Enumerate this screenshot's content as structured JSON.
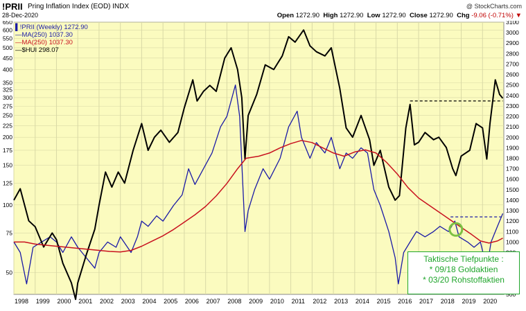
{
  "header": {
    "symbol": "!PRII",
    "name": "Pring Inflation Index (EOD)  INDX",
    "date": "28-Dec-2020",
    "brand": "@ StockCharts.com",
    "open_label": "Open",
    "open_value": "1272.90",
    "high_label": "High",
    "high_value": "1272.90",
    "low_label": "Low",
    "low_value": "1272.90",
    "close_label": "Close",
    "close_value": "1272.90",
    "chg_label": "Chg",
    "chg_value": "-9.06 (-0.71%)",
    "chg_arrow": "▼"
  },
  "legend": {
    "items": [
      {
        "text": "▌!PRII (Weekly) 1272.90",
        "color": "#1a1aa6"
      },
      {
        "text": "—MA(250) 1037.30",
        "color": "#1a1aa6"
      },
      {
        "text": "—MA(250) 1037.30",
        "color": "#c8101e"
      },
      {
        "text": "—$HUI 298.07",
        "color": "#000000"
      }
    ]
  },
  "annotation": {
    "title": "Taktische Tiefpunkte :",
    "line1": "* 09/18 Goldaktien",
    "line2": "* 03/20 Rohstoffaktien"
  },
  "colors": {
    "plot_bg": "#fbfbbf",
    "grid": "#d9d9a6",
    "prii": "#1a1aa6",
    "ma": "#c8101e",
    "hui": "#000000",
    "circle": "#7cc043",
    "annotation": "#1fa52b"
  },
  "chart_data": {
    "type": "line",
    "title": "",
    "x_ticks": [
      "1998",
      "1999",
      "2000",
      "2001",
      "2002",
      "2003",
      "2004",
      "2005",
      "2006",
      "2007",
      "2008",
      "2009",
      "2010",
      "2011",
      "2012",
      "2013",
      "2014",
      "2015",
      "2016",
      "2017",
      "2018",
      "2019",
      "2020"
    ],
    "left_axis_ticks": [
      "650",
      "600",
      "550",
      "500",
      "450",
      "400",
      "350",
      "325",
      "300",
      "275",
      "250",
      "225",
      "200",
      "175",
      "150",
      "125",
      "100",
      "75",
      "50"
    ],
    "right_axis_ticks": [
      "3100",
      "3000",
      "2900",
      "2800",
      "2700",
      "2600",
      "2500",
      "2400",
      "2300",
      "2200",
      "2100",
      "2000",
      "1900",
      "1800",
      "1700",
      "1600",
      "1500",
      "1400",
      "1300",
      "1200",
      "1100",
      "1000",
      "900",
      "800",
      "700",
      "600",
      "500"
    ],
    "left_scale": "log",
    "left_range": [
      40,
      650
    ],
    "right_range": [
      500,
      3100
    ],
    "x_range": [
      1998.0,
      2021.0
    ],
    "grid": true,
    "series": [
      {
        "name": "$HUI 298.07",
        "axis": "left",
        "points": [
          [
            1998.0,
            105
          ],
          [
            1998.3,
            118
          ],
          [
            1998.7,
            85
          ],
          [
            1999.0,
            80
          ],
          [
            1999.4,
            65
          ],
          [
            1999.8,
            75
          ],
          [
            2000.0,
            70
          ],
          [
            2000.3,
            55
          ],
          [
            2000.7,
            45
          ],
          [
            2000.9,
            38
          ],
          [
            2001.0,
            45
          ],
          [
            2001.4,
            60
          ],
          [
            2001.8,
            78
          ],
          [
            2002.0,
            100
          ],
          [
            2002.3,
            140
          ],
          [
            2002.6,
            120
          ],
          [
            2002.9,
            140
          ],
          [
            2003.2,
            125
          ],
          [
            2003.6,
            175
          ],
          [
            2004.0,
            230
          ],
          [
            2004.3,
            175
          ],
          [
            2004.6,
            200
          ],
          [
            2004.9,
            215
          ],
          [
            2005.3,
            190
          ],
          [
            2005.7,
            210
          ],
          [
            2006.0,
            270
          ],
          [
            2006.4,
            360
          ],
          [
            2006.6,
            290
          ],
          [
            2006.9,
            320
          ],
          [
            2007.2,
            340
          ],
          [
            2007.5,
            320
          ],
          [
            2007.9,
            450
          ],
          [
            2008.2,
            500
          ],
          [
            2008.5,
            400
          ],
          [
            2008.7,
            300
          ],
          [
            2008.85,
            160
          ],
          [
            2009.0,
            250
          ],
          [
            2009.4,
            310
          ],
          [
            2009.8,
            420
          ],
          [
            2010.2,
            400
          ],
          [
            2010.6,
            460
          ],
          [
            2010.9,
            560
          ],
          [
            2011.2,
            530
          ],
          [
            2011.6,
            600
          ],
          [
            2011.9,
            510
          ],
          [
            2012.2,
            480
          ],
          [
            2012.6,
            460
          ],
          [
            2012.9,
            500
          ],
          [
            2013.3,
            330
          ],
          [
            2013.6,
            220
          ],
          [
            2013.9,
            200
          ],
          [
            2014.3,
            250
          ],
          [
            2014.7,
            195
          ],
          [
            2014.9,
            150
          ],
          [
            2015.2,
            175
          ],
          [
            2015.6,
            120
          ],
          [
            2015.9,
            105
          ],
          [
            2016.1,
            110
          ],
          [
            2016.4,
            220
          ],
          [
            2016.6,
            280
          ],
          [
            2016.8,
            185
          ],
          [
            2017.0,
            190
          ],
          [
            2017.3,
            210
          ],
          [
            2017.7,
            195
          ],
          [
            2017.95,
            200
          ],
          [
            2018.3,
            180
          ],
          [
            2018.6,
            145
          ],
          [
            2018.75,
            135
          ],
          [
            2019.0,
            165
          ],
          [
            2019.4,
            175
          ],
          [
            2019.7,
            230
          ],
          [
            2020.0,
            220
          ],
          [
            2020.2,
            160
          ],
          [
            2020.35,
            230
          ],
          [
            2020.6,
            360
          ],
          [
            2020.8,
            310
          ],
          [
            2020.95,
            298
          ]
        ]
      },
      {
        "name": "!PRII (Weekly) 1272.90",
        "axis": "right",
        "points": [
          [
            1998.0,
            1000
          ],
          [
            1998.3,
            900
          ],
          [
            1998.6,
            600
          ],
          [
            1998.9,
            950
          ],
          [
            1999.3,
            1000
          ],
          [
            1999.7,
            1050
          ],
          [
            2000.0,
            1000
          ],
          [
            2000.3,
            900
          ],
          [
            2000.7,
            1050
          ],
          [
            2001.0,
            950
          ],
          [
            2001.4,
            850
          ],
          [
            2001.8,
            750
          ],
          [
            2002.0,
            900
          ],
          [
            2002.4,
            1000
          ],
          [
            2002.8,
            950
          ],
          [
            2003.0,
            1050
          ],
          [
            2003.5,
            900
          ],
          [
            2003.8,
            1050
          ],
          [
            2004.0,
            1200
          ],
          [
            2004.3,
            1150
          ],
          [
            2004.7,
            1250
          ],
          [
            2005.0,
            1200
          ],
          [
            2005.5,
            1350
          ],
          [
            2005.9,
            1450
          ],
          [
            2006.2,
            1700
          ],
          [
            2006.5,
            1550
          ],
          [
            2006.9,
            1700
          ],
          [
            2007.3,
            1850
          ],
          [
            2007.7,
            2100
          ],
          [
            2008.0,
            2200
          ],
          [
            2008.4,
            2500
          ],
          [
            2008.6,
            2200
          ],
          [
            2008.85,
            1100
          ],
          [
            2009.0,
            1300
          ],
          [
            2009.3,
            1500
          ],
          [
            2009.7,
            1700
          ],
          [
            2010.0,
            1600
          ],
          [
            2010.5,
            1800
          ],
          [
            2010.9,
            2100
          ],
          [
            2011.3,
            2250
          ],
          [
            2011.5,
            2000
          ],
          [
            2011.9,
            1800
          ],
          [
            2012.2,
            1950
          ],
          [
            2012.6,
            1850
          ],
          [
            2012.9,
            2000
          ],
          [
            2013.3,
            1700
          ],
          [
            2013.6,
            1850
          ],
          [
            2013.9,
            1800
          ],
          [
            2014.3,
            1900
          ],
          [
            2014.6,
            1850
          ],
          [
            2014.9,
            1500
          ],
          [
            2015.2,
            1350
          ],
          [
            2015.6,
            1100
          ],
          [
            2015.9,
            850
          ],
          [
            2016.05,
            600
          ],
          [
            2016.3,
            900
          ],
          [
            2016.6,
            1000
          ],
          [
            2016.9,
            1100
          ],
          [
            2017.3,
            1050
          ],
          [
            2017.7,
            1100
          ],
          [
            2018.0,
            1150
          ],
          [
            2018.4,
            1100
          ],
          [
            2018.7,
            1200
          ],
          [
            2018.9,
            1050
          ],
          [
            2019.3,
            1000
          ],
          [
            2019.6,
            950
          ],
          [
            2019.9,
            1000
          ],
          [
            2020.2,
            750
          ],
          [
            2020.4,
            1000
          ],
          [
            2020.7,
            1150
          ],
          [
            2020.95,
            1273
          ]
        ]
      },
      {
        "name": "MA(250) 1037.30",
        "axis": "right",
        "points": [
          [
            1998.0,
            1000
          ],
          [
            1998.5,
            1000
          ],
          [
            1999.0,
            980
          ],
          [
            1999.5,
            970
          ],
          [
            2000.0,
            960
          ],
          [
            2000.5,
            950
          ],
          [
            2001.0,
            940
          ],
          [
            2001.5,
            930
          ],
          [
            2002.0,
            920
          ],
          [
            2002.5,
            910
          ],
          [
            2003.0,
            905
          ],
          [
            2003.5,
            920
          ],
          [
            2004.0,
            960
          ],
          [
            2004.5,
            1010
          ],
          [
            2005.0,
            1060
          ],
          [
            2005.5,
            1120
          ],
          [
            2006.0,
            1190
          ],
          [
            2006.5,
            1260
          ],
          [
            2007.0,
            1340
          ],
          [
            2007.5,
            1440
          ],
          [
            2008.0,
            1560
          ],
          [
            2008.5,
            1700
          ],
          [
            2008.9,
            1800
          ],
          [
            2009.5,
            1820
          ],
          [
            2010.0,
            1850
          ],
          [
            2010.5,
            1900
          ],
          [
            2011.0,
            1940
          ],
          [
            2011.5,
            1970
          ],
          [
            2012.0,
            1950
          ],
          [
            2012.5,
            1900
          ],
          [
            2013.0,
            1850
          ],
          [
            2013.5,
            1820
          ],
          [
            2014.0,
            1860
          ],
          [
            2014.5,
            1880
          ],
          [
            2015.0,
            1850
          ],
          [
            2015.5,
            1760
          ],
          [
            2016.0,
            1650
          ],
          [
            2016.5,
            1520
          ],
          [
            2017.0,
            1420
          ],
          [
            2017.5,
            1350
          ],
          [
            2018.0,
            1280
          ],
          [
            2018.5,
            1210
          ],
          [
            2019.0,
            1140
          ],
          [
            2019.5,
            1070
          ],
          [
            2019.9,
            1010
          ],
          [
            2020.3,
            990
          ],
          [
            2020.7,
            1010
          ],
          [
            2020.95,
            1037
          ]
        ]
      }
    ],
    "reference_lines": [
      {
        "style": "dashed",
        "axis": "left",
        "value": 290,
        "x_from": 2016.6,
        "x_to": 2020.95
      },
      {
        "style": "dashed",
        "axis": "right",
        "value": 1240,
        "x_from": 2018.5,
        "x_to": 2020.95
      }
    ],
    "markers": [
      {
        "shape": "circle",
        "x": 2018.75,
        "axis": "right",
        "value": 1120
      },
      {
        "shape": "circle",
        "x": 2020.2,
        "axis": "right",
        "value": 730
      }
    ]
  }
}
